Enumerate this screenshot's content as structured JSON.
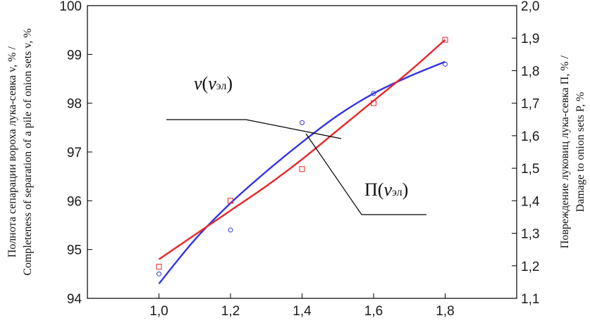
{
  "chart_data": {
    "type": "line",
    "x": [
      1.0,
      1.2,
      1.4,
      1.6,
      1.8
    ],
    "x_ticks": [
      "1,0",
      "1,2",
      "1,4",
      "1,6",
      "1,8"
    ],
    "xlim": [
      0.8,
      2.0
    ],
    "y_left": {
      "lim": [
        94,
        100
      ],
      "ticks": [
        "94",
        "95",
        "96",
        "97",
        "98",
        "99",
        "100"
      ],
      "label_line1": "Полнота сепарации вороха лука-севка v, % /",
      "label_line2": "Completeness of separation of a pile of onion sets v, %"
    },
    "y_right": {
      "lim": [
        1.1,
        2.0
      ],
      "ticks": [
        "1,1",
        "1,2",
        "1,3",
        "1,4",
        "1,5",
        "1,6",
        "1,7",
        "1,8",
        "1,9",
        "2,0"
      ],
      "label_line1": "Повреждение луковиц лука-севка П, % /",
      "label_line2": "Damage to onion sets P, %"
    },
    "series": [
      {
        "axis": "left",
        "color": "#3333e6",
        "marker": "circle",
        "points": [
          94.5,
          95.4,
          97.6,
          98.2,
          98.8
        ],
        "fit": [
          [
            1.0,
            94.3
          ],
          [
            1.1,
            95.2
          ],
          [
            1.2,
            95.95
          ],
          [
            1.3,
            96.6
          ],
          [
            1.4,
            97.2
          ],
          [
            1.5,
            97.75
          ],
          [
            1.6,
            98.2
          ],
          [
            1.7,
            98.55
          ],
          [
            1.8,
            98.85
          ]
        ]
      },
      {
        "axis": "left",
        "color": "#e8262a",
        "marker": "square",
        "points": [
          94.65,
          96.0,
          96.65,
          98.0,
          99.3
        ],
        "fit": [
          [
            1.0,
            94.8
          ],
          [
            1.1,
            95.3
          ],
          [
            1.2,
            95.8
          ],
          [
            1.3,
            96.3
          ],
          [
            1.4,
            96.85
          ],
          [
            1.5,
            97.45
          ],
          [
            1.6,
            98.05
          ],
          [
            1.7,
            98.65
          ],
          [
            1.8,
            99.3
          ]
        ]
      }
    ],
    "annotations": {
      "v_label": "v",
      "v_label_paren_open": "(",
      "v_label_sub_main": "v",
      "v_label_sub": "эл",
      "v_label_paren_close": ")",
      "p_label": "П",
      "p_label_paren_open": "(",
      "p_label_sub_main": "v",
      "p_label_sub": "эл",
      "p_label_paren_close": ")"
    }
  }
}
